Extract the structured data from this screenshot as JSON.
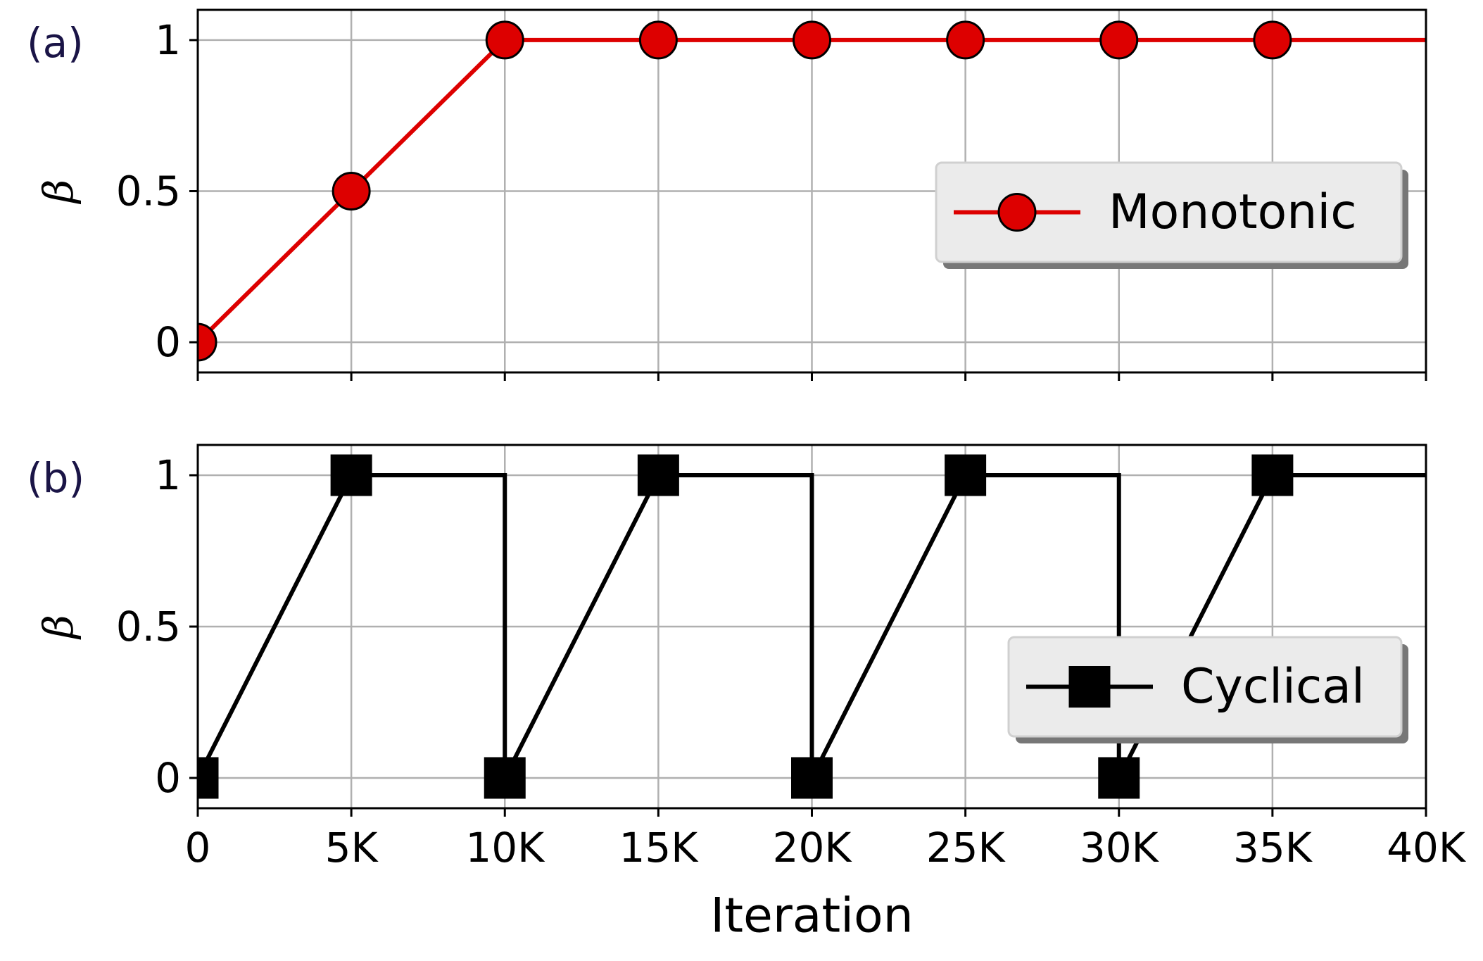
{
  "chart_data": [
    {
      "type": "line",
      "panel_label": "(a)",
      "ylabel": "β",
      "x": [
        0,
        5000,
        10000,
        15000,
        20000,
        25000,
        30000,
        35000,
        40000
      ],
      "series": [
        {
          "name": "Monotonic",
          "color": "#dd0000",
          "marker": "circle",
          "markevery": [
            0,
            1,
            2,
            3,
            4,
            5,
            6,
            7
          ],
          "values": [
            0,
            0.5,
            1,
            1,
            1,
            1,
            1,
            1,
            1
          ]
        }
      ],
      "xlim": [
        0,
        40000
      ],
      "xticks": [
        0,
        5000,
        10000,
        15000,
        20000,
        25000,
        30000,
        35000,
        40000
      ],
      "ylim": [
        -0.1,
        1.1
      ],
      "yticks": [
        0,
        0.5,
        1
      ],
      "grid": true,
      "legend": "center right"
    },
    {
      "type": "line",
      "panel_label": "(b)",
      "ylabel": "β",
      "xlabel": "Iteration",
      "x": [
        0,
        5000,
        10000,
        10000,
        15000,
        20000,
        20000,
        25000,
        30000,
        30000,
        35000,
        40000
      ],
      "series": [
        {
          "name": "Cyclical",
          "color": "#000000",
          "marker": "square",
          "markevery": [
            0,
            1,
            3,
            4,
            6,
            7,
            9,
            10
          ],
          "values": [
            0,
            1,
            1,
            0,
            1,
            1,
            0,
            1,
            1,
            0,
            1,
            1
          ]
        }
      ],
      "xlim": [
        0,
        40000
      ],
      "xticks": [
        {
          "value": 0,
          "label": "0"
        },
        {
          "value": 5000,
          "label": "5K"
        },
        {
          "value": 10000,
          "label": "10K"
        },
        {
          "value": 15000,
          "label": "15K"
        },
        {
          "value": 20000,
          "label": "20K"
        },
        {
          "value": 25000,
          "label": "25K"
        },
        {
          "value": 30000,
          "label": "30K"
        },
        {
          "value": 35000,
          "label": "35K"
        },
        {
          "value": 40000,
          "label": "40K"
        }
      ],
      "ylim": [
        -0.1,
        1.1
      ],
      "yticks": [
        0,
        0.5,
        1
      ],
      "grid": true,
      "legend": "lower right"
    }
  ]
}
